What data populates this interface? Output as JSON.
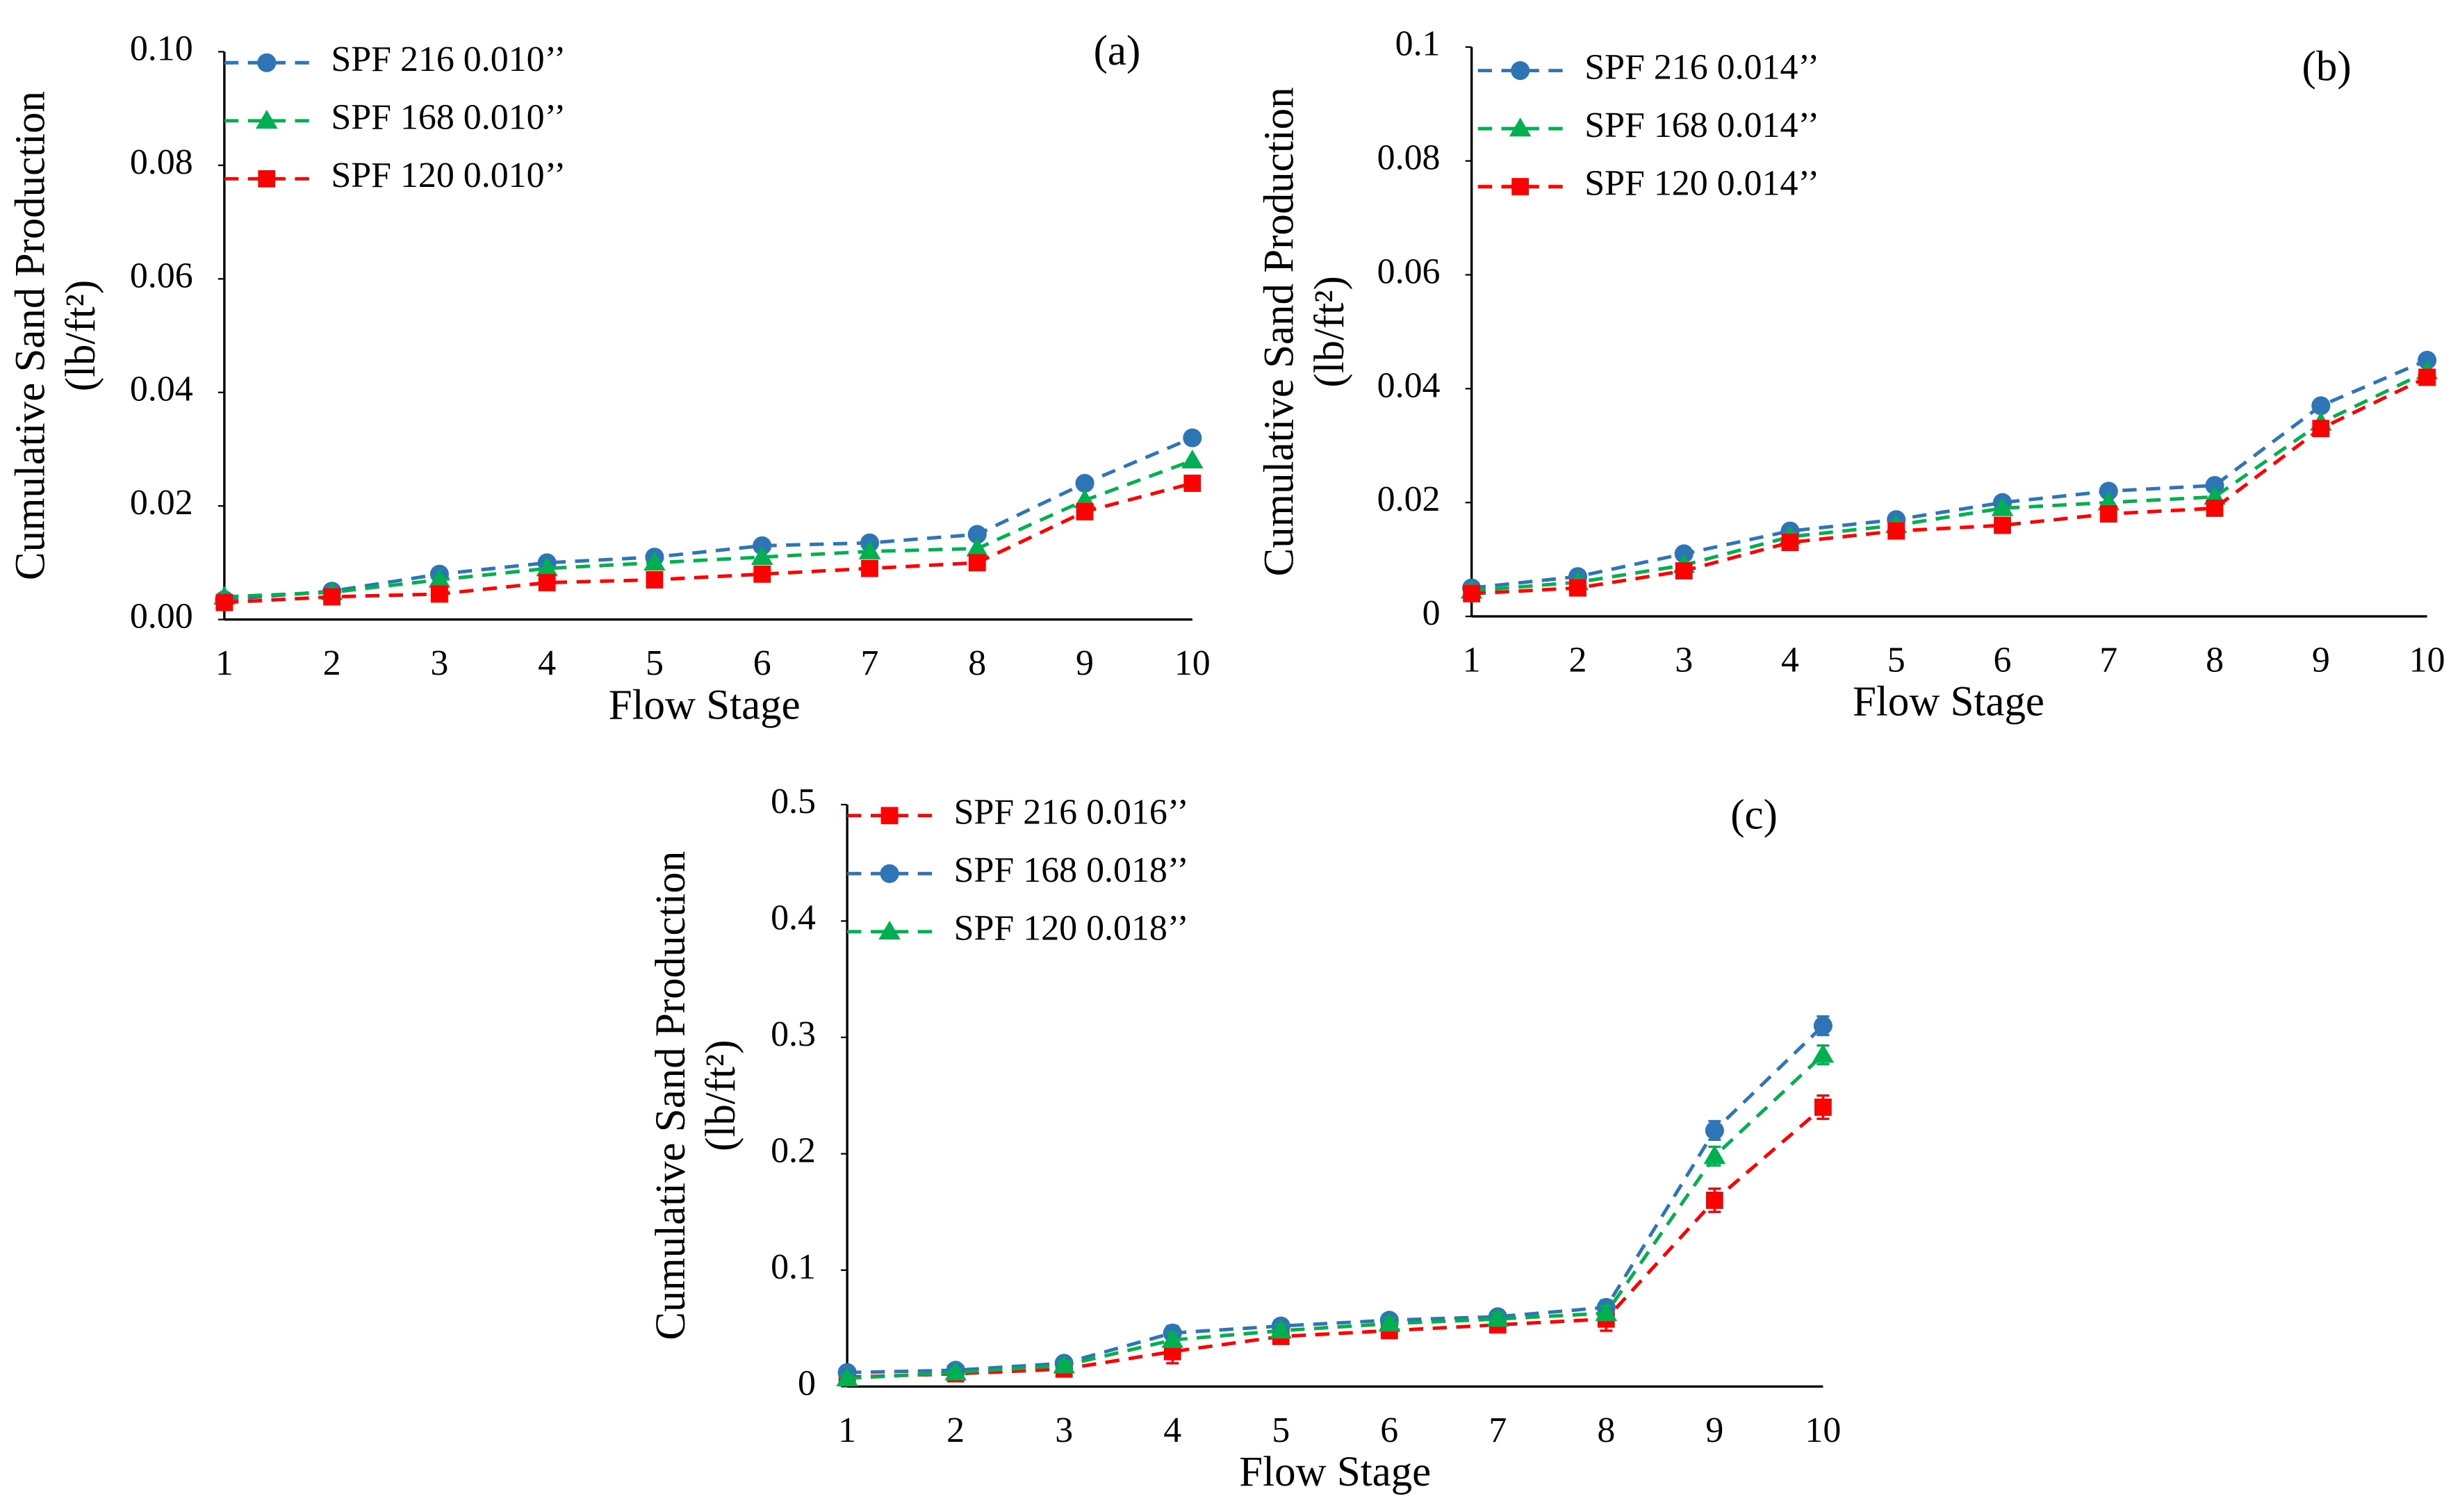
{
  "chart_data": [
    {
      "type": "line",
      "annotation": "(a)",
      "xlabel": "Flow Stage",
      "ylabel": [
        "Cumulative Sand Production",
        "(lb/ft²)"
      ],
      "categories": [
        "1",
        "2",
        "3",
        "4",
        "5",
        "6",
        "7",
        "8",
        "9",
        "10"
      ],
      "ylim": [
        0,
        0.1
      ],
      "yticks": [
        {
          "value": 0,
          "label": "0.00"
        },
        {
          "value": 0.02,
          "label": "0.02"
        },
        {
          "value": 0.04,
          "label": "0.04"
        },
        {
          "value": 0.06,
          "label": "0.06"
        },
        {
          "value": 0.08,
          "label": "0.08"
        },
        {
          "value": 0.1,
          "label": "0.10"
        }
      ],
      "legend": "upper left",
      "series": [
        {
          "name": "SPF 216 0.010’’",
          "color": "#2e75b6",
          "marker": "circle",
          "values": [
            0.0035,
            0.005,
            0.008,
            0.01,
            0.011,
            0.013,
            0.0135,
            0.015,
            0.024,
            0.032
          ]
        },
        {
          "name": "SPF 168 0.010’’",
          "color": "#00b050",
          "marker": "triangle",
          "values": [
            0.004,
            0.0048,
            0.007,
            0.009,
            0.01,
            0.011,
            0.012,
            0.0125,
            0.021,
            0.028
          ]
        },
        {
          "name": "SPF 120 0.010’’",
          "color": "#ff0000",
          "marker": "square",
          "values": [
            0.003,
            0.004,
            0.0045,
            0.0065,
            0.007,
            0.008,
            0.009,
            0.01,
            0.019,
            0.024
          ]
        }
      ]
    },
    {
      "type": "line",
      "annotation": "(b)",
      "xlabel": "Flow Stage",
      "ylabel": [
        "Cumulative Sand Production",
        "(lb/ft²)"
      ],
      "categories": [
        "1",
        "2",
        "3",
        "4",
        "5",
        "6",
        "7",
        "8",
        "9",
        "10"
      ],
      "ylim": [
        0,
        0.1
      ],
      "yticks": [
        0,
        0.02,
        0.04,
        0.06,
        0.08,
        0.1
      ],
      "legend": "upper left",
      "series": [
        {
          "name": "SPF 216 0.014’’",
          "color": "#2e75b6",
          "marker": "circle",
          "values": [
            0.005,
            0.007,
            0.011,
            0.015,
            0.017,
            0.02,
            0.022,
            0.023,
            0.037,
            0.045
          ]
        },
        {
          "name": "SPF 168 0.014’’",
          "color": "#00b050",
          "marker": "triangle",
          "values": [
            0.0045,
            0.006,
            0.009,
            0.014,
            0.016,
            0.019,
            0.02,
            0.021,
            0.034,
            0.043
          ]
        },
        {
          "name": "SPF 120 0.014’’",
          "color": "#ff0000",
          "marker": "square",
          "values": [
            0.004,
            0.005,
            0.008,
            0.013,
            0.015,
            0.016,
            0.018,
            0.019,
            0.033,
            0.042
          ]
        }
      ]
    },
    {
      "type": "line",
      "annotation": "(c)",
      "xlabel": "Flow Stage",
      "ylabel": [
        "Cumulative Sand Production",
        "(lb/ft²)"
      ],
      "categories": [
        "1",
        "2",
        "3",
        "4",
        "5",
        "6",
        "7",
        "8",
        "9",
        "10"
      ],
      "ylim": [
        0,
        0.5
      ],
      "yticks": [
        0,
        0.1,
        0.2,
        0.3,
        0.4,
        0.5
      ],
      "legend": "upper left",
      "series": [
        {
          "name": "SPF 216 0.016’’",
          "color": "#ff0000",
          "marker": "square",
          "values": [
            0.008,
            0.011,
            0.015,
            0.03,
            0.043,
            0.048,
            0.053,
            0.058,
            0.16,
            0.24
          ],
          "errors": [
            0.003,
            0.003,
            0.003,
            0.01,
            0.005,
            0.005,
            0.005,
            0.01,
            0.01,
            0.01
          ]
        },
        {
          "name": "SPF 168 0.018’’",
          "color": "#2e75b6",
          "marker": "circle",
          "values": [
            0.012,
            0.014,
            0.02,
            0.046,
            0.052,
            0.057,
            0.06,
            0.068,
            0.22,
            0.31
          ],
          "errors": [
            0.004,
            0.003,
            0.005,
            0.006,
            0.005,
            0.005,
            0.005,
            0.006,
            0.008,
            0.008
          ]
        },
        {
          "name": "SPF 120 0.018’’",
          "color": "#00b050",
          "marker": "triangle",
          "values": [
            0.007,
            0.012,
            0.018,
            0.04,
            0.048,
            0.054,
            0.058,
            0.063,
            0.198,
            0.285
          ],
          "errors": [
            0.003,
            0.003,
            0.004,
            0.006,
            0.005,
            0.005,
            0.005,
            0.006,
            0.008,
            0.008
          ]
        }
      ]
    }
  ]
}
